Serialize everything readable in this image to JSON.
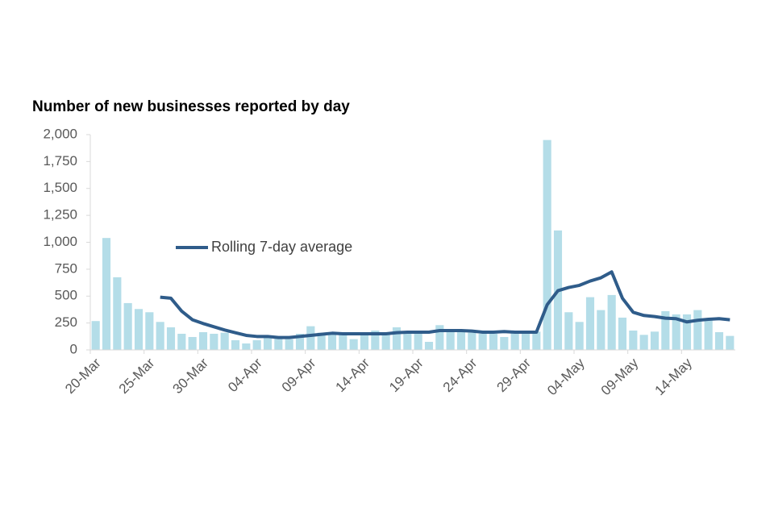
{
  "chart_data": {
    "type": "combo",
    "title": "Number of new businesses reported by day",
    "categories": [
      "20-Mar",
      null,
      null,
      null,
      null,
      "25-Mar",
      null,
      null,
      null,
      null,
      "30-Mar",
      null,
      null,
      null,
      null,
      "04-Apr",
      null,
      null,
      null,
      null,
      "09-Apr",
      null,
      null,
      null,
      null,
      "14-Apr",
      null,
      null,
      null,
      null,
      "19-Apr",
      null,
      null,
      null,
      null,
      "24-Apr",
      null,
      null,
      null,
      null,
      "29-Apr",
      null,
      null,
      null,
      null,
      "04-May",
      null,
      null,
      null,
      null,
      "09-May",
      null,
      null,
      null,
      null,
      "14-May",
      null,
      null,
      null,
      null
    ],
    "series": [
      {
        "type": "bar",
        "color": "#b4dde8",
        "values": [
          268,
          1040,
          675,
          435,
          380,
          350,
          260,
          210,
          150,
          120,
          165,
          150,
          160,
          90,
          60,
          90,
          120,
          110,
          100,
          150,
          220,
          160,
          150,
          140,
          100,
          140,
          180,
          150,
          210,
          160,
          160,
          75,
          230,
          180,
          170,
          160,
          150,
          150,
          120,
          160,
          150,
          170,
          1950,
          1110,
          350,
          260,
          490,
          370,
          510,
          300,
          180,
          140,
          170,
          360,
          330,
          330,
          370,
          290,
          165,
          130
        ]
      },
      {
        "type": "line",
        "name": "Rolling 7-day average",
        "color": "#2f5c8a",
        "values": [
          null,
          null,
          null,
          null,
          null,
          null,
          490,
          480,
          360,
          280,
          245,
          215,
          185,
          160,
          135,
          125,
          125,
          115,
          115,
          125,
          135,
          145,
          155,
          150,
          150,
          150,
          150,
          150,
          160,
          165,
          165,
          165,
          180,
          180,
          180,
          175,
          165,
          165,
          170,
          165,
          165,
          165,
          420,
          550,
          580,
          600,
          640,
          670,
          725,
          480,
          350,
          320,
          310,
          295,
          290,
          260,
          275,
          285,
          290,
          280
        ]
      }
    ],
    "ylim": [
      0,
      2000
    ],
    "yticks": [
      0,
      250,
      500,
      750,
      {
        "value": 1000,
        "label": "1,000"
      },
      {
        "value": 1250,
        "label": "1,250"
      },
      {
        "value": 1500,
        "label": "1,500"
      },
      {
        "value": 1750,
        "label": "1,750"
      },
      {
        "value": 2000,
        "label": "2,000"
      }
    ]
  }
}
